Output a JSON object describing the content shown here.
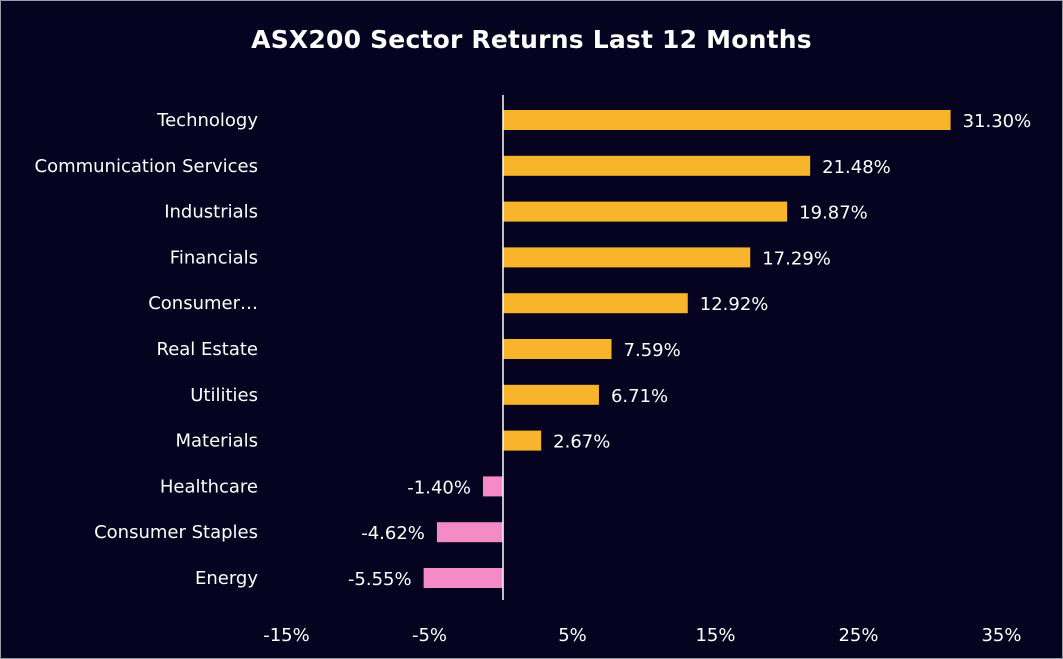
{
  "chart_data": {
    "type": "bar",
    "orientation": "horizontal",
    "title": "ASX200 Sector Returns Last 12 Months",
    "xlabel": "",
    "ylabel": "",
    "xlim": [
      -15,
      35
    ],
    "x_ticks": [
      "-15%",
      "-5%",
      "5%",
      "15%",
      "25%",
      "35%"
    ],
    "x_tick_values": [
      -15,
      -5,
      5,
      15,
      25,
      35
    ],
    "categories": [
      "Technology",
      "Communication Services",
      "Industrials",
      "Financials",
      "Consumer…",
      "Real Estate",
      "Utilities",
      "Materials",
      "Healthcare",
      "Consumer Staples",
      "Energy"
    ],
    "values": [
      31.3,
      21.48,
      19.87,
      17.29,
      12.92,
      7.59,
      6.71,
      2.67,
      -1.4,
      -4.62,
      -5.55
    ],
    "data_labels": [
      "31.30%",
      "21.48%",
      "19.87%",
      "17.29%",
      "12.92%",
      "7.59%",
      "6.71%",
      "2.67%",
      "-1.40%",
      "-4.62%",
      "-5.55%"
    ],
    "grid": false,
    "legend": "none",
    "colors": {
      "background": "#05031f",
      "positive": "#f8b52b",
      "negative": "#f48ac6",
      "text": "#ffffff",
      "axis": "#ffffff"
    }
  }
}
